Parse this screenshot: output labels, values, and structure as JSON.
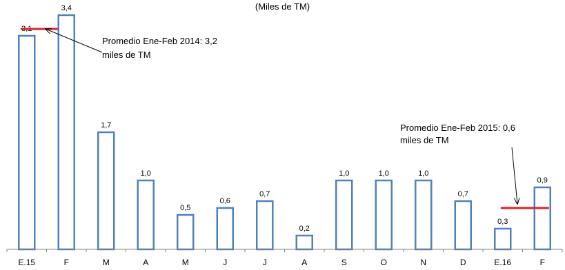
{
  "chart_data": {
    "type": "bar",
    "subtitle": "(Miles de TM)",
    "categories": [
      "E.15",
      "F",
      "M",
      "A",
      "M",
      "J",
      "J",
      "A",
      "S",
      "O",
      "N",
      "D",
      "E.16",
      "F"
    ],
    "values": [
      3.1,
      3.4,
      1.7,
      1.0,
      0.5,
      0.6,
      0.7,
      0.2,
      1.0,
      1.0,
      1.0,
      0.7,
      0.3,
      0.9
    ],
    "value_labels": [
      "3,1",
      "3,4",
      "1,7",
      "1,0",
      "0,5",
      "0,6",
      "0,7",
      "0,2",
      "1,0",
      "1,0",
      "1,0",
      "0,7",
      "0,3",
      "0,9"
    ],
    "ylim": [
      0,
      3.5
    ],
    "grid": false,
    "bar_color": "#4f81bd",
    "average_line_color": "#d9262b",
    "annotations": [
      {
        "id": "avg-2014",
        "text_line1": "Promedio Ene-Feb 2014: 3,2",
        "text_line2": "miles de TM",
        "value": 3.2,
        "span_categories": [
          0,
          1
        ]
      },
      {
        "id": "avg-2015",
        "text_line1": "Promedio  Ene-Feb 2015: 0,6",
        "text_line2": "miles de TM",
        "value": 0.6,
        "span_categories": [
          12,
          13
        ]
      }
    ]
  }
}
